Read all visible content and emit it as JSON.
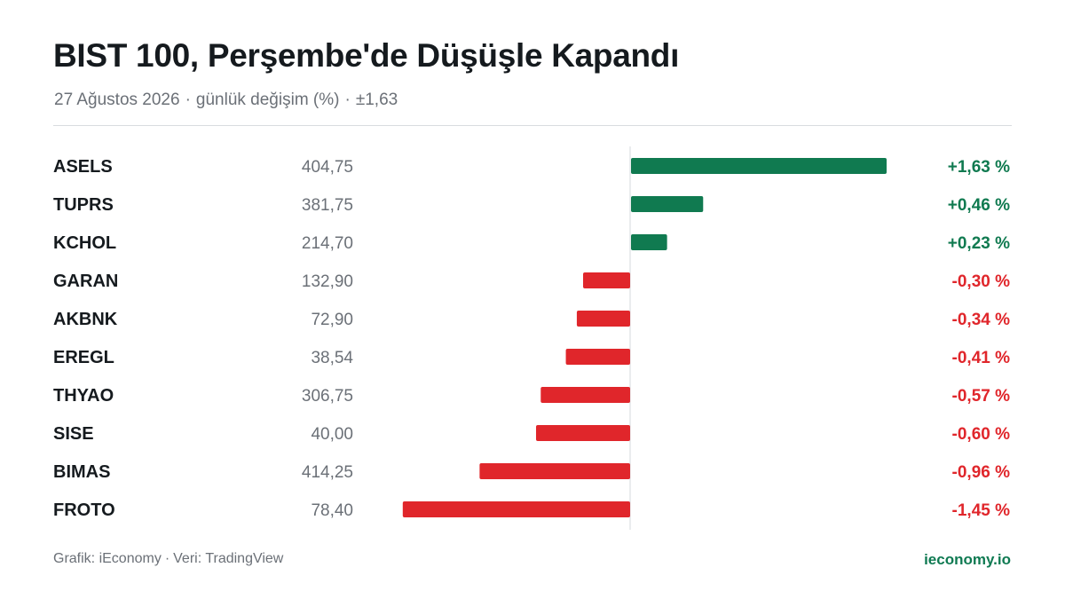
{
  "title": "BIST 100, Perşembe'de Düşüşle Kapandı",
  "subtitle": {
    "date": "27 Ağustos 2026",
    "metric": "günlük değişim (%)",
    "range": "±1,63",
    "separator": "·"
  },
  "footer": {
    "source_left": "Grafik: iEconomy",
    "source_right": "Veri: TradingView",
    "separator": "·",
    "brand": "ieconomy.io"
  },
  "colors": {
    "positive": "#107a50",
    "negative": "#e0262b",
    "axis": "#d6d9dc"
  },
  "chart_data": {
    "type": "bar",
    "orientation": "horizontal",
    "value_unit": "%",
    "xlim": [
      -1.63,
      1.63
    ],
    "categories": [
      "ASELS",
      "TUPRS",
      "KCHOL",
      "GARAN",
      "AKBNK",
      "EREGL",
      "THYAO",
      "SISE",
      "BIMAS",
      "FROTO"
    ],
    "prices": [
      "404,75",
      "381,75",
      "214,70",
      "132,90",
      "72,90",
      "38,54",
      "306,75",
      "40,00",
      "414,25",
      "78,40"
    ],
    "values": [
      1.63,
      0.46,
      0.23,
      -0.3,
      -0.34,
      -0.41,
      -0.57,
      -0.6,
      -0.96,
      -1.45
    ],
    "value_labels": [
      "+1,63 %",
      "+0,46 %",
      "+0,23 %",
      "-0,30 %",
      "-0,34 %",
      "-0,41 %",
      "-0,57 %",
      "-0,60 %",
      "-0,96 %",
      "-1,45 %"
    ]
  }
}
